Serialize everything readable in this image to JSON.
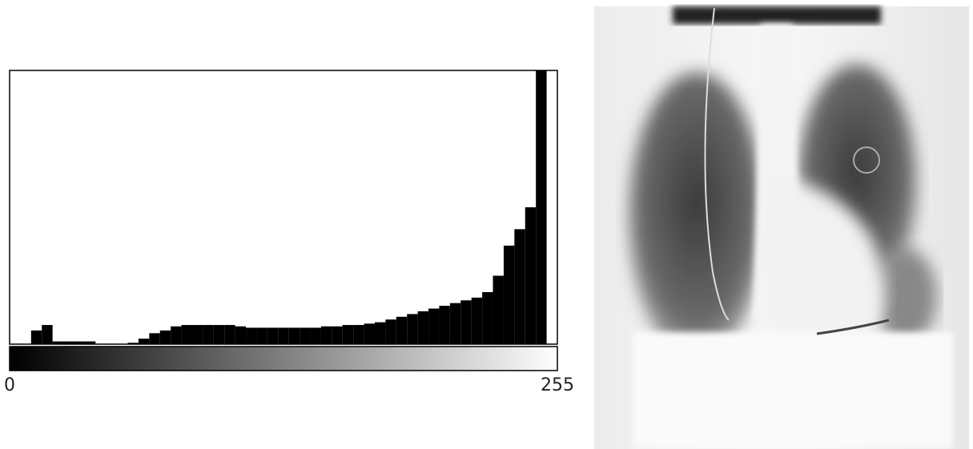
{
  "chart_data": {
    "type": "histogram",
    "bins": [
      0,
      5,
      10,
      15,
      20,
      25,
      30,
      35,
      40,
      45,
      50,
      55,
      60,
      65,
      70,
      75,
      80,
      85,
      90,
      95,
      100,
      105,
      110,
      115,
      120,
      125,
      130,
      135,
      140,
      145,
      150,
      155,
      160,
      165,
      170,
      175,
      180,
      185,
      190,
      195,
      200,
      205,
      210,
      215,
      220,
      225,
      230,
      235,
      240,
      245,
      250,
      255
    ],
    "values": [
      0,
      0,
      5,
      7,
      1,
      1,
      1,
      1,
      0,
      0,
      0,
      0.5,
      2,
      4,
      5,
      6.5,
      7,
      7,
      7,
      7,
      7,
      6.5,
      6,
      6,
      6,
      6,
      6,
      6,
      6,
      6.5,
      6.5,
      7,
      7,
      7.5,
      8,
      9,
      10,
      11,
      12,
      13,
      14,
      15,
      16,
      17,
      19,
      25,
      36,
      42,
      50,
      100,
      0
    ],
    "color": "#000000",
    "xlim": [
      0,
      255
    ],
    "xticks": [
      0,
      255
    ],
    "ylim": [
      0,
      100
    ],
    "grid": false
  }
}
